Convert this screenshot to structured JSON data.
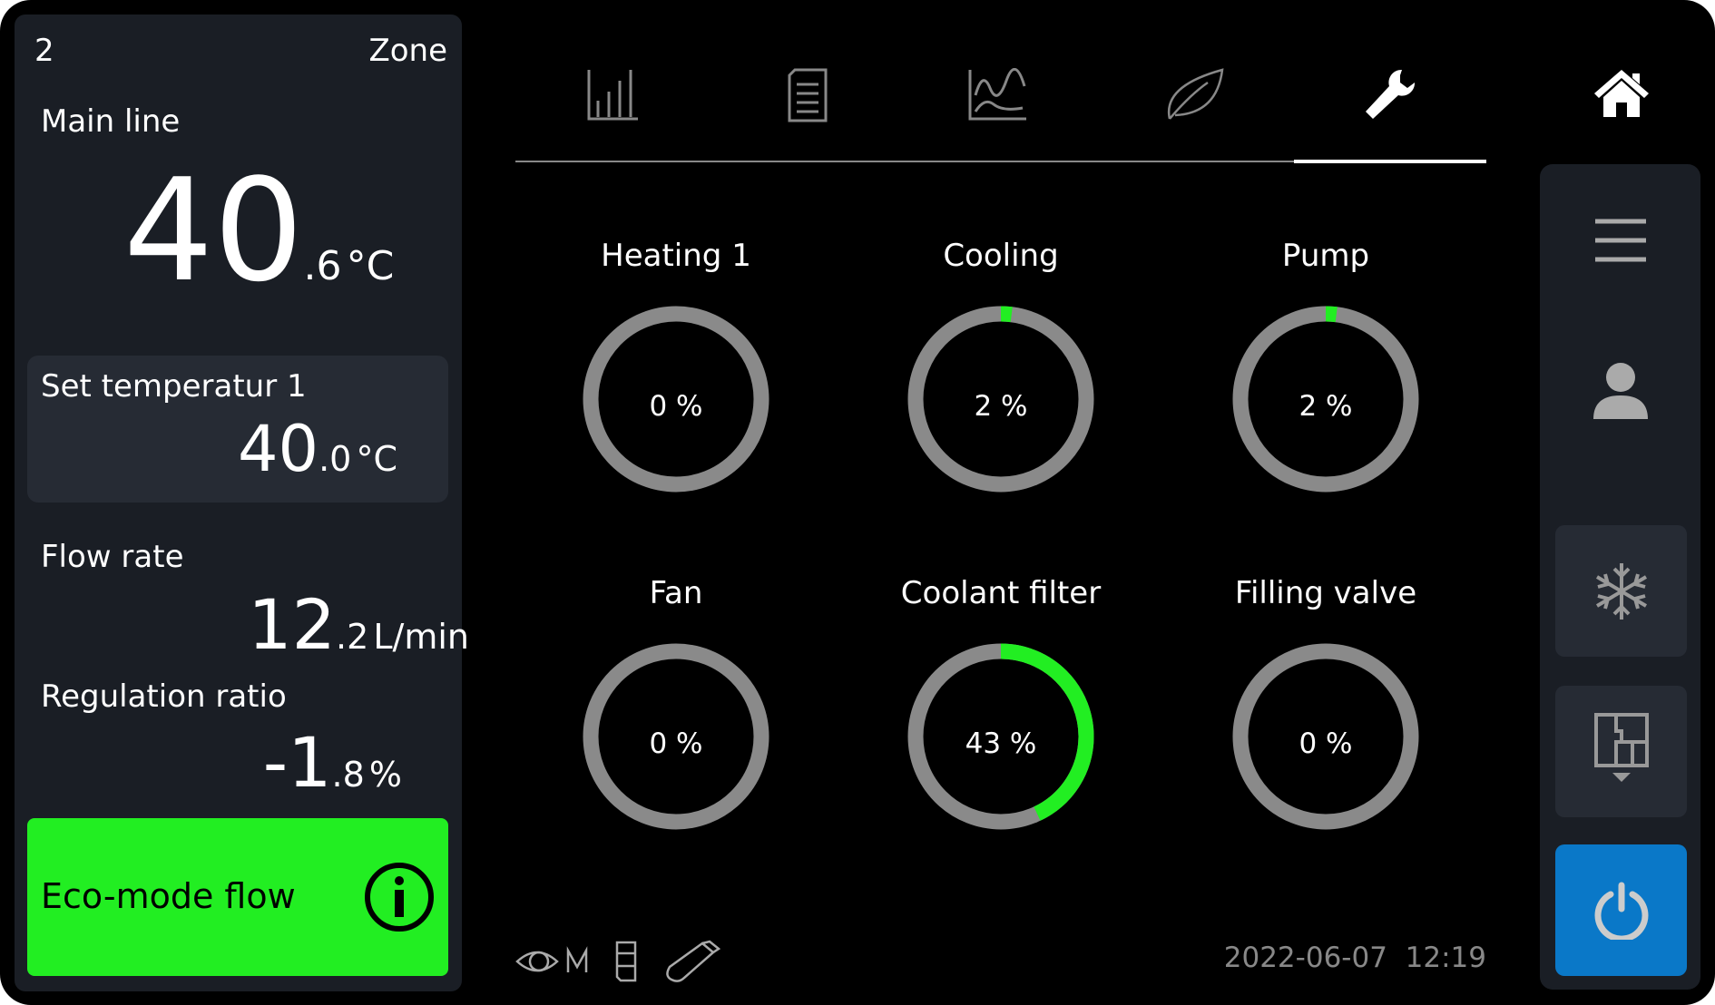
{
  "left_panel": {
    "zone_number": "2",
    "zone_label": "Zone",
    "main_line": {
      "label": "Main line",
      "integer": "40",
      "decimal": ".6",
      "unit": "°C"
    },
    "set_temp": {
      "label": "Set temperatur 1",
      "integer": "40",
      "decimal": ".0",
      "unit": "°C"
    },
    "flow_rate": {
      "label": "Flow rate",
      "integer": "12",
      "decimal": ".2",
      "unit": "L/min"
    },
    "regulation_ratio": {
      "label": "Regulation ratio",
      "integer": "-1",
      "decimal": ".8",
      "unit": "%"
    },
    "eco": {
      "label": "Eco-mode flow",
      "icon": "info-icon",
      "color": "#22ee22"
    }
  },
  "tabs": [
    {
      "icon": "bar-chart-icon",
      "active": false
    },
    {
      "icon": "document-list-icon",
      "active": false
    },
    {
      "icon": "line-chart-icon",
      "active": false
    },
    {
      "icon": "leaf-icon",
      "active": false
    },
    {
      "icon": "wrench-icon",
      "active": true
    }
  ],
  "gauges": [
    {
      "label": "Heating 1",
      "value": 0,
      "text": "0 %"
    },
    {
      "label": "Cooling",
      "value": 2,
      "text": "2 %"
    },
    {
      "label": "Pump",
      "value": 2,
      "text": "2 %"
    },
    {
      "label": "Fan",
      "value": 0,
      "text": "0 %"
    },
    {
      "label": "Coolant filter",
      "value": 43,
      "text": "43 %"
    },
    {
      "label": "Filling valve",
      "value": 0,
      "text": "0 %"
    }
  ],
  "colors": {
    "gauge_fill": "#22ee22",
    "gauge_track": "#8a8a8a",
    "power": "#0a78c8"
  },
  "status": {
    "icons": [
      "eye-m-icon",
      "memory-card-icon",
      "usb-stick-icon"
    ],
    "date": "2022-06-07",
    "time": "12:19"
  },
  "sidebar": [
    "home-icon",
    "menu-icon",
    "user-icon",
    "snowflake-icon",
    "floor-plan-icon",
    "power-icon"
  ]
}
